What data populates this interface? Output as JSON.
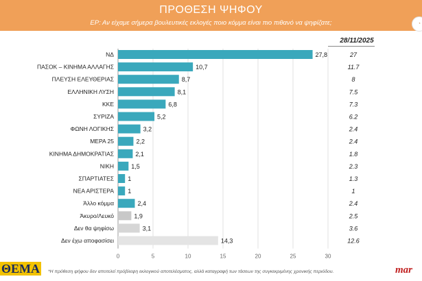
{
  "header": {
    "title": "ΠΡΟΘΕΣΗ ΨΗΦΟΥ",
    "question": "ΕΡ: Αν είχαμε σήμερα βουλευτικές εκλογές ποιο κόμμα είναι πιο πιθανό να ψηφίζατε;",
    "bg_color": "#f0a058"
  },
  "comparison": {
    "date": "28/11/2025"
  },
  "footnote": "*Η πρόθεση ψήφου δεν αποτελεί πρόβλεψη εκλογικού αποτελέσματος, αλλά καταγραφή των τάσεων της συγκεκριμένης χρονικής περιόδου.",
  "logos": {
    "left": "ΘΕΜΑ",
    "right": "mar"
  },
  "chart_data": {
    "type": "bar",
    "orientation": "horizontal",
    "categories": [
      "ΝΔ",
      "ΠΑΣΟΚ – ΚΙΝΗΜΑ ΑΛΛΑΓΗΣ",
      "ΠΛΕΥΣΗ ΕΛΕΥΘΕΡΙΑΣ",
      "ΕΛΛΗΝΙΚΗ ΛΥΣΗ",
      "ΚΚΕ",
      "ΣΥΡΙΖΑ",
      "ΦΩΝΗ ΛΟΓΙΚΗΣ",
      "ΜΕΡΑ 25",
      "ΚΙΝΗΜΑ ΔΗΜΟΚΡΑΤΙΑΣ",
      "ΝΙΚΗ",
      "ΣΠΑΡΤΙΑΤΕΣ",
      "ΝΕΑ ΑΡΙΣΤΕΡΑ",
      "Άλλο κόμμα",
      "Άκυρο/Λευκό",
      "Δεν θα ψηφίσω",
      "Δεν έχω αποφασίσει"
    ],
    "values": [
      27.8,
      10.7,
      8.7,
      8.1,
      6.8,
      5.2,
      3.2,
      2.2,
      2.1,
      1.5,
      1,
      1,
      2.4,
      1.9,
      3.1,
      14.3
    ],
    "value_labels": [
      "27,8",
      "10,7",
      "8,7",
      "8,1",
      "6,8",
      "5,2",
      "3,2",
      "2,2",
      "2,1",
      "1,5",
      "1",
      "1",
      "2,4",
      "1,9",
      "3,1",
      "14,3"
    ],
    "bar_colors": [
      "#3aa8bc",
      "#3aa8bc",
      "#3aa8bc",
      "#3aa8bc",
      "#3aa8bc",
      "#3aa8bc",
      "#3aa8bc",
      "#3aa8bc",
      "#3aa8bc",
      "#3aa8bc",
      "#3aa8bc",
      "#3aa8bc",
      "#3aa8bc",
      "#c8c8c8",
      "#d6d6d6",
      "#e4e4e4"
    ],
    "previous_label": "28/11/2025",
    "previous_values": [
      "27",
      "11.7",
      "8",
      "7.5",
      "7.3",
      "6.2",
      "2.4",
      "2.4",
      "1.8",
      "2.3",
      "1.3",
      "1",
      "2.4",
      "2.5",
      "3.6",
      "12.6"
    ],
    "xlim": [
      0,
      30
    ],
    "xticks": [
      "0",
      "5",
      "10",
      "15",
      "20",
      "25",
      "30"
    ],
    "grid": true
  }
}
